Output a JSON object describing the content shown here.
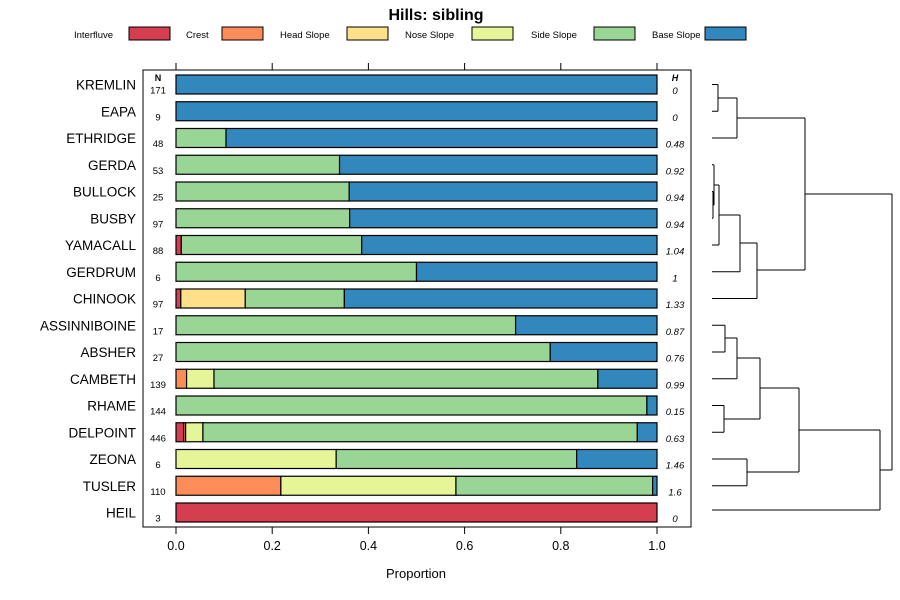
{
  "chart_data": {
    "type": "bar",
    "stacked": true,
    "orientation": "horizontal",
    "title": "Hills: sibling",
    "xlabel": "Proportion",
    "ylabel": "",
    "xlim": [
      0,
      1
    ],
    "x_ticks": [
      "0.0",
      "0.2",
      "0.4",
      "0.6",
      "0.8",
      "1.0"
    ],
    "n_header": "N",
    "h_header": "H",
    "legend_position": "top",
    "legend": [
      {
        "name": "Interfluve",
        "color": "#D53E4F"
      },
      {
        "name": "Crest",
        "color": "#FC8D59"
      },
      {
        "name": "Head Slope",
        "color": "#FEE08B"
      },
      {
        "name": "Nose Slope",
        "color": "#E6F598"
      },
      {
        "name": "Side Slope",
        "color": "#99D594"
      },
      {
        "name": "Base Slope",
        "color": "#3288BD"
      }
    ],
    "rows": [
      {
        "name": "KREMLIN",
        "n": "171",
        "h": "0",
        "values": [
          0,
          0,
          0,
          0,
          0,
          1.0
        ]
      },
      {
        "name": "EAPA",
        "n": "9",
        "h": "0",
        "values": [
          0,
          0,
          0,
          0,
          0,
          1.0
        ]
      },
      {
        "name": "ETHRIDGE",
        "n": "48",
        "h": "0.48",
        "values": [
          0,
          0,
          0,
          0,
          0.104,
          0.896
        ]
      },
      {
        "name": "GERDA",
        "n": "53",
        "h": "0.92",
        "values": [
          0,
          0,
          0,
          0,
          0.34,
          0.66
        ]
      },
      {
        "name": "BULLOCK",
        "n": "25",
        "h": "0.94",
        "values": [
          0,
          0,
          0,
          0,
          0.36,
          0.64
        ]
      },
      {
        "name": "BUSBY",
        "n": "97",
        "h": "0.94",
        "values": [
          0,
          0,
          0,
          0,
          0.361,
          0.639
        ]
      },
      {
        "name": "YAMACALL",
        "n": "88",
        "h": "1.04",
        "values": [
          0.011,
          0,
          0,
          0,
          0.375,
          0.614
        ]
      },
      {
        "name": "GERDRUM",
        "n": "6",
        "h": "1",
        "values": [
          0,
          0,
          0,
          0,
          0.5,
          0.5
        ]
      },
      {
        "name": "CHINOOK",
        "n": "97",
        "h": "1.33",
        "values": [
          0.01,
          0,
          0.134,
          0,
          0.206,
          0.65
        ]
      },
      {
        "name": "ASSINNIBOINE",
        "n": "17",
        "h": "0.87",
        "values": [
          0,
          0,
          0,
          0,
          0.706,
          0.294
        ]
      },
      {
        "name": "ABSHER",
        "n": "27",
        "h": "0.76",
        "values": [
          0,
          0,
          0,
          0,
          0.778,
          0.222
        ]
      },
      {
        "name": "CAMBETH",
        "n": "139",
        "h": "0.99",
        "values": [
          0,
          0.022,
          0,
          0.057,
          0.798,
          0.123
        ]
      },
      {
        "name": "RHAME",
        "n": "144",
        "h": "0.15",
        "values": [
          0,
          0,
          0,
          0,
          0.979,
          0.021
        ]
      },
      {
        "name": "DELPOINT",
        "n": "446",
        "h": "0.63",
        "values": [
          0.016,
          0.004,
          0,
          0.036,
          0.903,
          0.041
        ]
      },
      {
        "name": "ZEONA",
        "n": "6",
        "h": "1.46",
        "values": [
          0,
          0,
          0,
          0.333,
          0.5,
          0.167
        ]
      },
      {
        "name": "TUSLER",
        "n": "110",
        "h": "1.6",
        "values": [
          0,
          0.218,
          0,
          0.364,
          0.409,
          0.009
        ]
      },
      {
        "name": "HEIL",
        "n": "3",
        "h": "0",
        "values": [
          1.0,
          0,
          0,
          0,
          0,
          0
        ]
      }
    ]
  }
}
